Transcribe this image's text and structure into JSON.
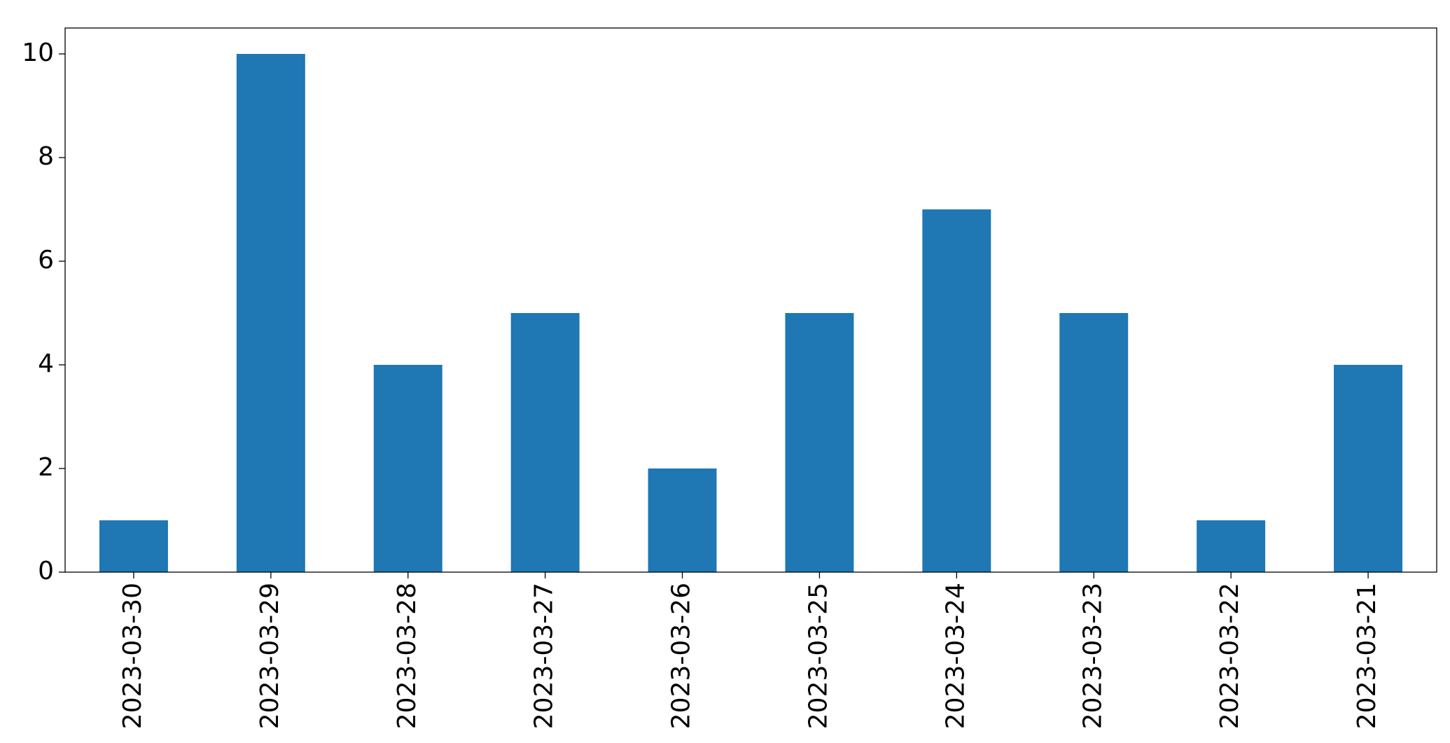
{
  "chart_data": {
    "type": "bar",
    "categories": [
      "2023-03-30",
      "2023-03-29",
      "2023-03-28",
      "2023-03-27",
      "2023-03-26",
      "2023-03-25",
      "2023-03-24",
      "2023-03-23",
      "2023-03-22",
      "2023-03-21"
    ],
    "values": [
      1,
      10,
      4,
      5,
      2,
      5,
      7,
      5,
      1,
      4
    ],
    "color": "#1f77b4",
    "ylim": [
      0,
      10.5
    ],
    "yticks": [
      0,
      2,
      4,
      6,
      8,
      10
    ],
    "grid": false
  }
}
